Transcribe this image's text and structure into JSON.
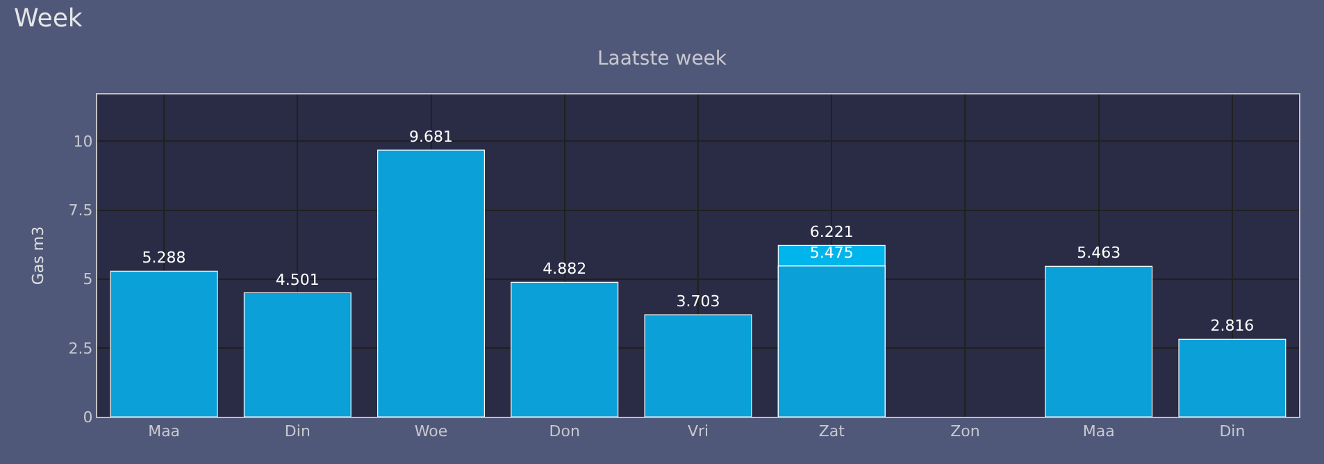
{
  "chart_data": {
    "type": "bar",
    "title": "Laatste week",
    "ylabel": "Gas m3",
    "annotations": [
      "Week"
    ],
    "categories": [
      "Maa",
      "Din",
      "Woe",
      "Don",
      "Vri",
      "Zat",
      "Zon",
      "Maa",
      "Din"
    ],
    "series": [
      {
        "color": "#00b4ec",
        "values": [
          null,
          null,
          null,
          null,
          null,
          6.221,
          null,
          null,
          null
        ]
      },
      {
        "color": "#0ba1d8",
        "values": [
          5.288,
          4.501,
          9.681,
          4.882,
          3.703,
          5.475,
          null,
          5.463,
          2.816
        ]
      }
    ],
    "ylim": [
      0,
      11.7
    ],
    "yticks": [
      0,
      2.5,
      5,
      7.5,
      10
    ],
    "grid": true,
    "legend": false,
    "data_labels": true
  }
}
